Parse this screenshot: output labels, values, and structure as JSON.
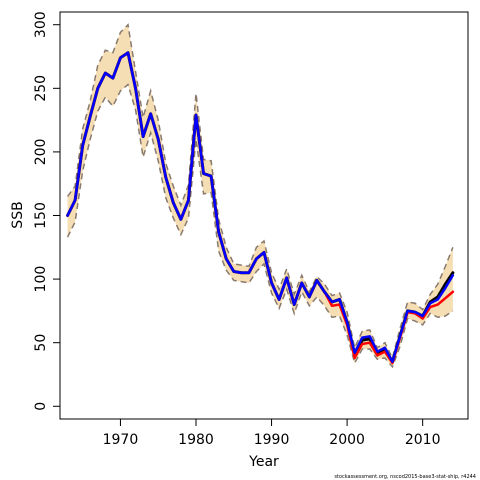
{
  "chart_data": {
    "type": "line",
    "xlabel": "Year",
    "ylabel": "SSB",
    "xlim": [
      1962,
      2016
    ],
    "ylim": [
      -10,
      310
    ],
    "x_ticks": [
      1970,
      1980,
      1990,
      2000,
      2010
    ],
    "y_ticks": [
      0,
      50,
      100,
      150,
      200,
      250,
      300
    ],
    "grid": false,
    "legend": "none",
    "footnote": "stockassessment.org, nscod2015-base3-stat-ship, r4244",
    "colors": {
      "band": "#f5deb3",
      "bounds": "#8a7a6e",
      "line_black": "#000000",
      "line_red": "#ff0000",
      "line_blue": "#0000ff"
    },
    "x": [
      1963,
      1964,
      1965,
      1966,
      1967,
      1968,
      1969,
      1970,
      1971,
      1972,
      1973,
      1974,
      1975,
      1976,
      1977,
      1978,
      1979,
      1980,
      1981,
      1982,
      1983,
      1984,
      1985,
      1986,
      1987,
      1988,
      1989,
      1990,
      1991,
      1992,
      1993,
      1994,
      1995,
      1996,
      1997,
      1998,
      1999,
      2000,
      2001,
      2002,
      2003,
      2004,
      2005,
      2006,
      2007,
      2008,
      2009,
      2010,
      2011,
      2012,
      2013,
      2014
    ],
    "upper": [
      165,
      173,
      218,
      240,
      268,
      280,
      278,
      294,
      300,
      263,
      227,
      248,
      225,
      191,
      173,
      158,
      174,
      246,
      194,
      193,
      147,
      125,
      112,
      111,
      110,
      125,
      130,
      105,
      92,
      108,
      88,
      103,
      90,
      102,
      96,
      87,
      89,
      74,
      46,
      59,
      60,
      46,
      50,
      38,
      61,
      82,
      81,
      76,
      88,
      96,
      110,
      125
    ],
    "lower": [
      133,
      145,
      185,
      210,
      232,
      243,
      236,
      248,
      253,
      233,
      196,
      215,
      193,
      164,
      148,
      135,
      148,
      210,
      167,
      168,
      122,
      107,
      99,
      98,
      97,
      106,
      112,
      89,
      77,
      92,
      73,
      90,
      79,
      86,
      79,
      70,
      71,
      56,
      34,
      45,
      45,
      37,
      38,
      31,
      47,
      69,
      67,
      64,
      73,
      70,
      71,
      75
    ],
    "series": [
      {
        "values": [
          150,
          162,
          205,
          228,
          250,
          262,
          258,
          274,
          278,
          250,
          212,
          230,
          210,
          180,
          160,
          147,
          162,
          229,
          183,
          181,
          137,
          116,
          106,
          105,
          105,
          116,
          121,
          97,
          84,
          101,
          80,
          97,
          86,
          99,
          90,
          82,
          84,
          66,
          41,
          52,
          53,
          42,
          45,
          35,
          55,
          75,
          74,
          71,
          82,
          86,
          96,
          105
        ]
      },
      {
        "values": [
          150,
          162,
          205,
          228,
          250,
          262,
          258,
          274,
          278,
          250,
          212,
          230,
          210,
          180,
          160,
          147,
          162,
          229,
          183,
          181,
          137,
          116,
          106,
          105,
          105,
          116,
          121,
          97,
          84,
          101,
          80,
          97,
          86,
          99,
          90,
          79,
          80,
          64,
          38,
          49,
          50,
          40,
          43,
          34,
          54,
          74,
          73,
          69,
          78,
          80,
          85,
          90
        ]
      },
      {
        "values": [
          150,
          162,
          205,
          228,
          250,
          262,
          258,
          274,
          278,
          250,
          212,
          230,
          210,
          180,
          160,
          147,
          162,
          229,
          183,
          181,
          137,
          116,
          106,
          105,
          105,
          116,
          121,
          97,
          84,
          101,
          80,
          97,
          86,
          99,
          90,
          82,
          84,
          66,
          42,
          54,
          55,
          43,
          46,
          35,
          55,
          75,
          74,
          71,
          81,
          84,
          93,
          103
        ]
      }
    ]
  }
}
